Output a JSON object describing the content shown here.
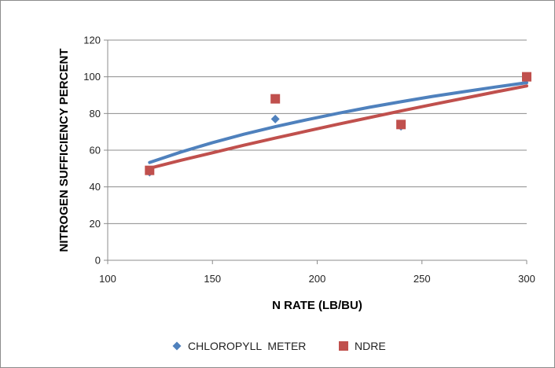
{
  "chart_data": {
    "type": "scatter",
    "title": "",
    "xlabel": "N RATE (LB/BU)",
    "ylabel": "NITROGEN SUFFICIENCY PERCENT",
    "xlim": [
      100,
      300
    ],
    "ylim": [
      0,
      120
    ],
    "x_ticks": [
      100,
      150,
      200,
      250,
      300
    ],
    "y_ticks": [
      0,
      20,
      40,
      60,
      80,
      100,
      120
    ],
    "grid": "horizontal",
    "legend_position": "bottom",
    "series": [
      {
        "name": "CHLOROPYLL  METER",
        "marker": "diamond",
        "color": "#4f81bd",
        "x": [
          120,
          180,
          240,
          300
        ],
        "y": [
          48,
          77,
          73,
          100
        ],
        "trendline": {
          "type": "logarithmic",
          "x": [
            120,
            135,
            150,
            165,
            180,
            195,
            210,
            225,
            240,
            255,
            270,
            285,
            300
          ],
          "y": [
            53.3,
            59.0,
            64.1,
            68.7,
            72.8,
            76.6,
            80.1,
            83.4,
            86.4,
            89.3,
            91.9,
            94.4,
            96.8
          ]
        }
      },
      {
        "name": "NDRE",
        "marker": "square",
        "color": "#c0504d",
        "x": [
          120,
          180,
          240,
          300
        ],
        "y": [
          49,
          88,
          74,
          100
        ],
        "trendline": {
          "type": "power",
          "x": [
            120,
            135,
            150,
            165,
            180,
            195,
            210,
            225,
            240,
            255,
            270,
            285,
            300
          ],
          "y": [
            50.2,
            54.5,
            58.6,
            62.7,
            66.6,
            70.4,
            74.2,
            77.8,
            81.4,
            84.9,
            88.3,
            91.7,
            95.0
          ]
        }
      }
    ]
  }
}
